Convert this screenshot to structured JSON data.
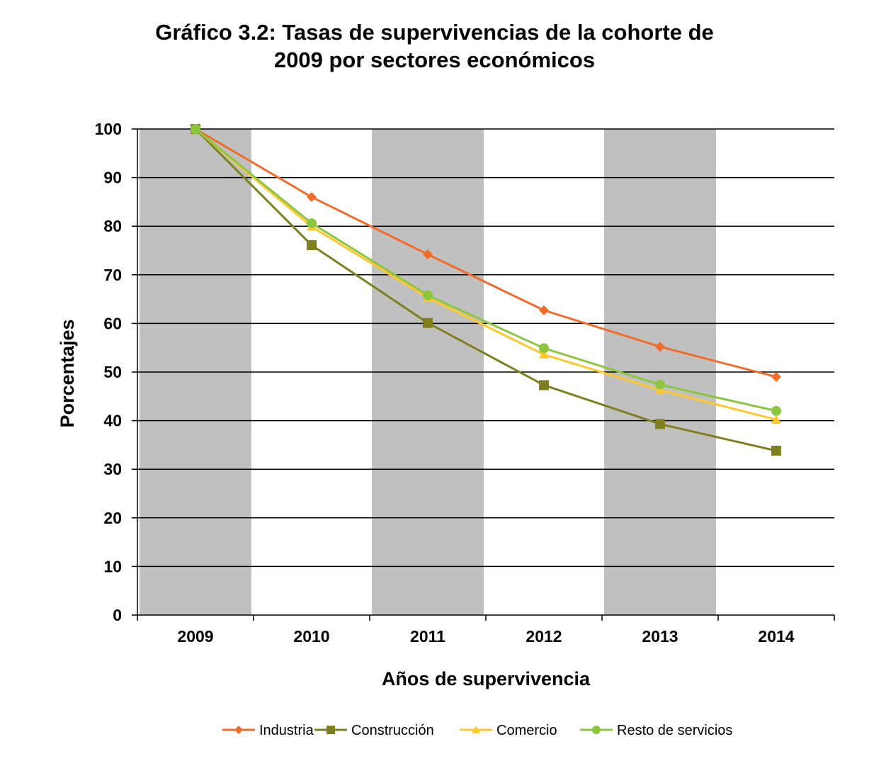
{
  "chart_data": {
    "type": "line",
    "title": [
      "Gráfico 3.2: Tasas de supervivencias de la cohorte de",
      "2009 por sectores económicos"
    ],
    "xlabel": "Años de supervivencia",
    "ylabel": "Porcentajes",
    "categories": [
      "2009",
      "2010",
      "2011",
      "2012",
      "2013",
      "2014"
    ],
    "ylim": [
      0,
      100
    ],
    "yticks": [
      "0",
      "10",
      "20",
      "30",
      "40",
      "50",
      "60",
      "70",
      "80",
      "90",
      "100"
    ],
    "grid": true,
    "shaded_bands": [
      "2009",
      "2011",
      "2013"
    ],
    "legend_position": "bottom",
    "series": [
      {
        "name": "Industria",
        "color": "#F26B2A",
        "marker": "diamond",
        "values": [
          100,
          86.0,
          74.2,
          62.7,
          55.2,
          49.0
        ]
      },
      {
        "name": "Construcción",
        "color": "#7F7F20",
        "marker": "square",
        "values": [
          100,
          76.1,
          60.1,
          47.3,
          39.3,
          33.8
        ]
      },
      {
        "name": "Comercio",
        "color": "#FFC72C",
        "marker": "triangle",
        "values": [
          100,
          79.9,
          65.3,
          53.6,
          46.3,
          40.2
        ]
      },
      {
        "name": "Resto de servicios",
        "color": "#8CC63F",
        "marker": "circle",
        "values": [
          100,
          80.6,
          65.8,
          54.9,
          47.4,
          42.0
        ]
      }
    ]
  }
}
